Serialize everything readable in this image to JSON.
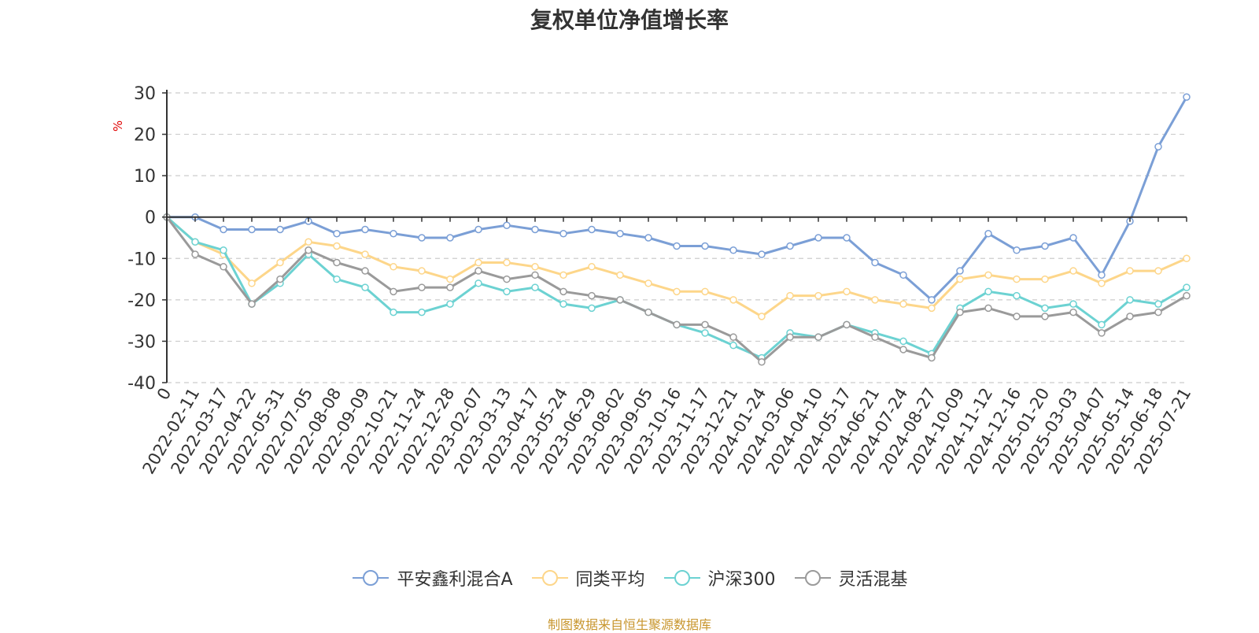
{
  "title": "复权单位净值增长率",
  "source_note": "制图数据来自恒生聚源数据库",
  "colors": {
    "series": [
      "#7b9fd6",
      "#fdd68a",
      "#6cd2d2",
      "#9a9a9a"
    ],
    "axis": "#333333",
    "grid": "#cccccc",
    "unit": "#e00000"
  },
  "legend": [
    {
      "name": "平安鑫利混合A",
      "icon": "line-circle-icon"
    },
    {
      "name": "同类平均",
      "icon": "line-circle-icon"
    },
    {
      "name": "沪深300",
      "icon": "line-circle-icon"
    },
    {
      "name": "灵活混基",
      "icon": "line-circle-icon"
    }
  ],
  "chart_data": {
    "type": "line",
    "title": "复权单位净值增长率",
    "xlabel": "",
    "ylabel": "%",
    "ylim": [
      -40,
      30
    ],
    "yticks": [
      30,
      20,
      10,
      0,
      -10,
      -20,
      -30,
      -40
    ],
    "grid": true,
    "legend_position": "bottom",
    "x": [
      "0",
      "2022-02-11",
      "2022-03-17",
      "2022-04-22",
      "2022-05-31",
      "2022-07-05",
      "2022-08-08",
      "2022-09-09",
      "2022-10-21",
      "2022-11-24",
      "2022-12-28",
      "2023-02-07",
      "2023-03-13",
      "2023-04-17",
      "2023-05-24",
      "2023-06-29",
      "2023-08-02",
      "2023-09-05",
      "2023-10-16",
      "2023-11-17",
      "2023-12-21",
      "2024-01-24",
      "2024-03-06",
      "2024-04-10",
      "2024-05-17",
      "2024-06-21",
      "2024-07-24",
      "2024-08-27",
      "2024-10-09",
      "2024-11-12",
      "2024-12-16",
      "2025-01-20",
      "2025-03-03",
      "2025-04-07",
      "2025-05-14",
      "2025-06-18",
      "2025-07-21"
    ],
    "series": [
      {
        "name": "平安鑫利混合A",
        "values": [
          0,
          0,
          -3,
          -3,
          -3,
          -1,
          -4,
          -3,
          -4,
          -5,
          -5,
          -3,
          -2,
          -3,
          -4,
          -3,
          -4,
          -5,
          -7,
          -7,
          -8,
          -9,
          -7,
          -5,
          -5,
          -11,
          -14,
          -20,
          -13,
          -4,
          -8,
          -7,
          -5,
          -14,
          -1,
          17,
          29
        ]
      },
      {
        "name": "同类平均",
        "values": [
          0,
          -6,
          -9,
          -16,
          -11,
          -6,
          -7,
          -9,
          -12,
          -13,
          -15,
          -11,
          -11,
          -12,
          -14,
          -12,
          -14,
          -16,
          -18,
          -18,
          -20,
          -24,
          -19,
          -19,
          -18,
          -20,
          -21,
          -22,
          -15,
          -14,
          -15,
          -15,
          -13,
          -16,
          -13,
          -13,
          -10
        ]
      },
      {
        "name": "沪深300",
        "values": [
          0,
          -6,
          -8,
          -21,
          -16,
          -9,
          -15,
          -17,
          -23,
          -23,
          -21,
          -16,
          -18,
          -17,
          -21,
          -22,
          -20,
          -23,
          -26,
          -28,
          -31,
          -34,
          -28,
          -29,
          -26,
          -28,
          -30,
          -33,
          -22,
          -18,
          -19,
          -22,
          -21,
          -26,
          -20,
          -21,
          -17
        ]
      },
      {
        "name": "灵活混基",
        "values": [
          0,
          -9,
          -12,
          -21,
          -15,
          -8,
          -11,
          -13,
          -18,
          -17,
          -17,
          -13,
          -15,
          -14,
          -18,
          -19,
          -20,
          -23,
          -26,
          -26,
          -29,
          -35,
          -29,
          -29,
          -26,
          -29,
          -32,
          -34,
          -23,
          -22,
          -24,
          -24,
          -23,
          -28,
          -24,
          -23,
          -19
        ]
      }
    ]
  }
}
